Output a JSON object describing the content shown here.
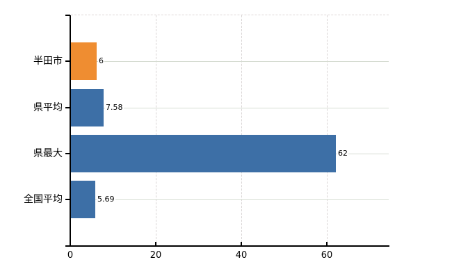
{
  "chart_data": {
    "type": "bar",
    "orientation": "horizontal",
    "title": "",
    "xlabel": "",
    "ylabel": "",
    "categories": [
      "半田市",
      "県平均",
      "県最大",
      "全国平均"
    ],
    "values": [
      6,
      7.58,
      62,
      5.69
    ],
    "value_labels": [
      "6",
      "7.58",
      "62",
      "5.69"
    ],
    "bar_colors": [
      "#ef8d31",
      "#3d6fa6",
      "#3d6fa6",
      "#3d6fa6"
    ],
    "highlight_color": "#ef8d31",
    "default_color": "#3d6fa6",
    "x_ticks": [
      0,
      20,
      40,
      60
    ],
    "x_tick_labels": [
      "0",
      "20",
      "40",
      "60"
    ],
    "xlim": [
      0,
      74.5
    ],
    "grid": true,
    "legend": false,
    "gridline_solid_color": "#d6dcd2",
    "gridline_dashed_color": "#d9d5d5",
    "axis_color": "#000000",
    "text_color": "#000000",
    "background_color": "#ffffff"
  }
}
